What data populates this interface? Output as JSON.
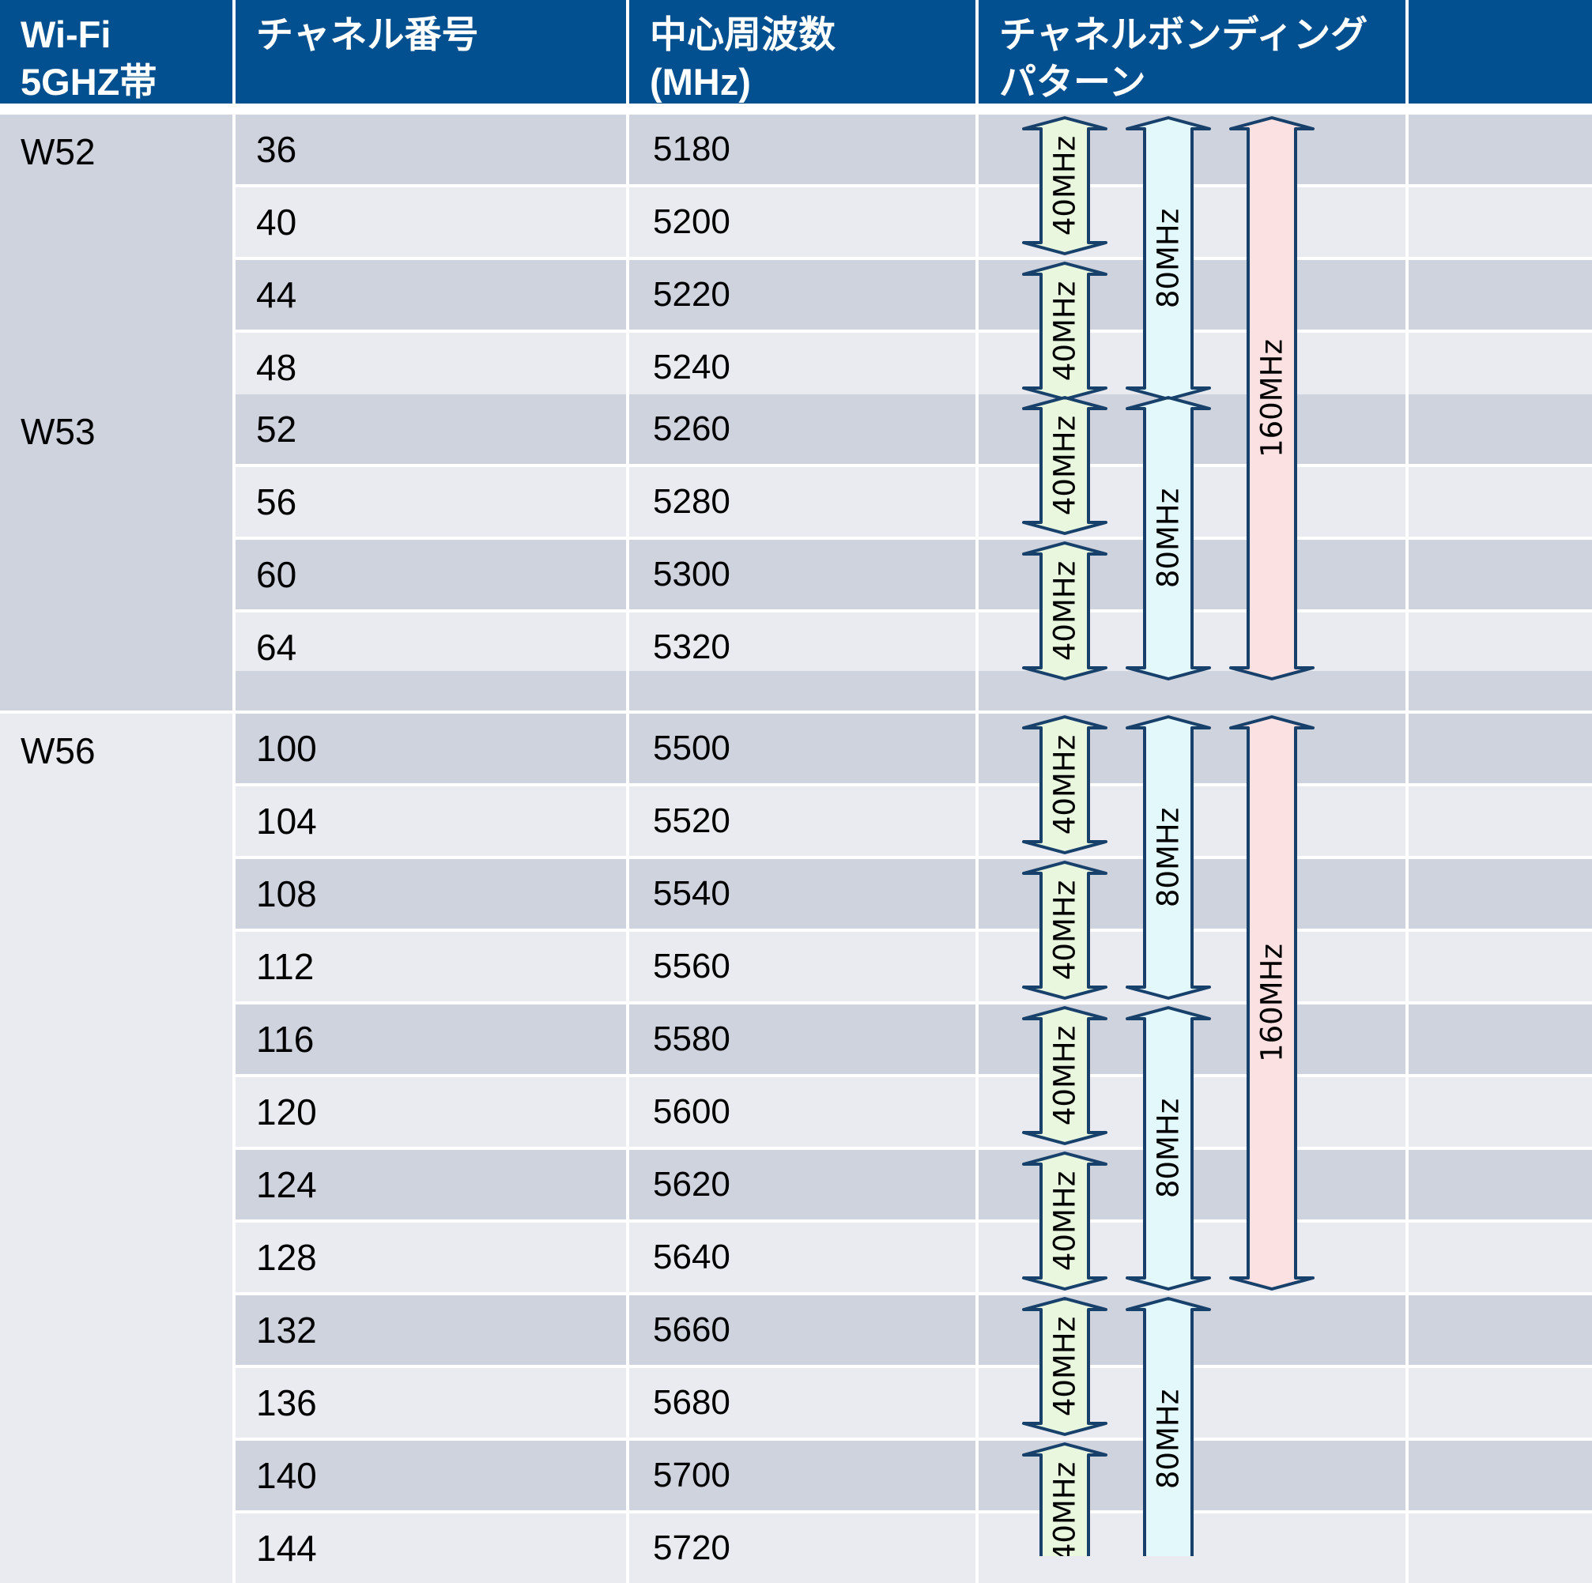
{
  "header": {
    "band": "Wi-Fi\n5GHZ帯",
    "channel": "チャネル番号",
    "frequency": "中心周波数\n(MHz)",
    "bonding": "チャネルボンディング\nパターン",
    "extra": ""
  },
  "bands": [
    {
      "name": "W52",
      "rows": [
        {
          "channel": "36",
          "freq": "5180"
        },
        {
          "channel": "40",
          "freq": "5200"
        },
        {
          "channel": "44",
          "freq": "5220"
        },
        {
          "channel": "48",
          "freq": "5240"
        }
      ]
    },
    {
      "name": "W53",
      "rows": [
        {
          "channel": "52",
          "freq": "5260"
        },
        {
          "channel": "56",
          "freq": "5280"
        },
        {
          "channel": "60",
          "freq": "5300"
        },
        {
          "channel": "64",
          "freq": "5320"
        }
      ]
    },
    {
      "name": "W56",
      "rows": [
        {
          "channel": "100",
          "freq": "5500"
        },
        {
          "channel": "104",
          "freq": "5520"
        },
        {
          "channel": "108",
          "freq": "5540"
        },
        {
          "channel": "112",
          "freq": "5560"
        },
        {
          "channel": "116",
          "freq": "5580"
        },
        {
          "channel": "120",
          "freq": "5600"
        },
        {
          "channel": "124",
          "freq": "5620"
        },
        {
          "channel": "128",
          "freq": "5640"
        },
        {
          "channel": "132",
          "freq": "5660"
        },
        {
          "channel": "136",
          "freq": "5680"
        },
        {
          "channel": "140",
          "freq": "5700"
        },
        {
          "channel": "144",
          "freq": "5720"
        }
      ]
    }
  ],
  "bonding": {
    "label_40": "40MHz",
    "label_80": "80MHz",
    "label_160": "160MHz",
    "arrows_40": [
      [
        0,
        1
      ],
      [
        2,
        3
      ],
      [
        4,
        5
      ],
      [
        6,
        7
      ],
      [
        8,
        9
      ],
      [
        10,
        11
      ],
      [
        12,
        13
      ],
      [
        14,
        15
      ],
      [
        16,
        17
      ],
      [
        18,
        19
      ]
    ],
    "arrows_80": [
      [
        0,
        3
      ],
      [
        4,
        7
      ],
      [
        8,
        11
      ],
      [
        12,
        15
      ],
      [
        16,
        19
      ]
    ],
    "arrows_160": [
      [
        0,
        7
      ],
      [
        8,
        15
      ]
    ],
    "colors": {
      "c40": "#e8f7de",
      "c80": "#e3f8fb",
      "c160": "#fce1e3",
      "stroke": "#17406b"
    }
  },
  "colors": {
    "header": "#02508f",
    "row_dark": "#ced3de",
    "row_light": "#e9ebf0"
  }
}
